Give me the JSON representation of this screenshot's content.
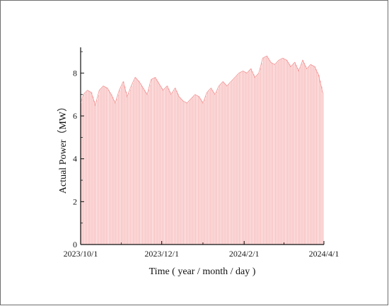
{
  "chart_data": {
    "type": "area",
    "title": "",
    "xlabel": "Time ( year / month / day )",
    "ylabel": "Actual Power（MW）",
    "x_range": [
      "2023-10-01",
      "2024-04-01"
    ],
    "x_ticks": [
      "2023/10/1",
      "2023/12/1",
      "2024/2/1",
      "2024/4/1"
    ],
    "y_range": [
      0,
      9.2
    ],
    "y_ticks": [
      0,
      2,
      4,
      6,
      8
    ],
    "grid": false,
    "legend": "none",
    "series": [
      {
        "color": "#f28c8c",
        "resolution": "daily peak",
        "x": [
          "2023-10-01",
          "2023-10-03",
          "2023-10-06",
          "2023-10-09",
          "2023-10-12",
          "2023-10-15",
          "2023-10-18",
          "2023-10-21",
          "2023-10-24",
          "2023-10-27",
          "2023-10-30",
          "2023-11-02",
          "2023-11-05",
          "2023-11-08",
          "2023-11-11",
          "2023-11-14",
          "2023-11-17",
          "2023-11-20",
          "2023-11-23",
          "2023-11-26",
          "2023-11-29",
          "2023-12-02",
          "2023-12-05",
          "2023-12-08",
          "2023-12-11",
          "2023-12-14",
          "2023-12-17",
          "2023-12-20",
          "2023-12-23",
          "2023-12-26",
          "2023-12-29",
          "2024-01-01",
          "2024-01-04",
          "2024-01-07",
          "2024-01-10",
          "2024-01-13",
          "2024-01-16",
          "2024-01-19",
          "2024-01-22",
          "2024-01-25",
          "2024-01-28",
          "2024-01-31",
          "2024-02-03",
          "2024-02-06",
          "2024-02-09",
          "2024-02-12",
          "2024-02-15",
          "2024-02-18",
          "2024-02-21",
          "2024-02-24",
          "2024-02-27",
          "2024-03-01",
          "2024-03-04",
          "2024-03-07",
          "2024-03-10",
          "2024-03-13",
          "2024-03-16",
          "2024-03-19",
          "2024-03-22",
          "2024-03-25",
          "2024-03-28",
          "2024-03-31"
        ],
        "y": [
          6.6,
          7.0,
          7.2,
          7.1,
          6.5,
          7.2,
          7.4,
          7.3,
          7.0,
          6.6,
          7.2,
          7.6,
          6.9,
          7.4,
          7.8,
          7.6,
          7.3,
          7.0,
          7.7,
          7.8,
          7.5,
          7.2,
          7.4,
          7.0,
          7.3,
          6.9,
          6.7,
          6.6,
          6.8,
          7.0,
          6.9,
          6.6,
          7.1,
          7.3,
          7.0,
          7.4,
          7.6,
          7.4,
          7.6,
          7.8,
          8.0,
          8.1,
          8.0,
          8.2,
          7.8,
          8.0,
          8.7,
          8.8,
          8.5,
          8.4,
          8.6,
          8.7,
          8.6,
          8.3,
          8.5,
          8.1,
          8.6,
          8.2,
          8.4,
          8.3,
          7.9,
          7.1
        ]
      }
    ]
  }
}
